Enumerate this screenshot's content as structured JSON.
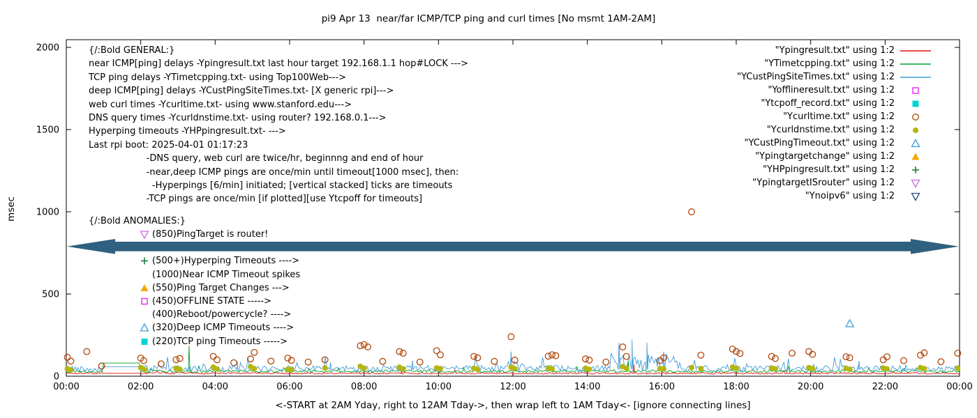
{
  "chart_data": {
    "type": "line+scatter time series (gnuplot style)",
    "title": "pi9 Apr 13  near/far ICMP/TCP ping and curl times [No msmt 1AM-2AM]",
    "xlabel": "<-START at 2AM Yday, right to 12AM Tday->, then wrap left to 1AM Tday<- [ignore connecting lines]",
    "ylabel": "msec",
    "ylim": [
      0,
      2000
    ],
    "y_ticks": [
      0,
      500,
      1000,
      1500,
      2000
    ],
    "x_hours_span": 24,
    "x_ticks": [
      "00:00",
      "02:00",
      "04:00",
      "06:00",
      "08:00",
      "10:00",
      "12:00",
      "14:00",
      "16:00",
      "18:00",
      "20:00",
      "22:00",
      "00:00"
    ],
    "no_measurement_gap_hours": [
      1,
      2
    ],
    "grid": false,
    "legend_position": "top-right",
    "legend": [
      {
        "label": "\"Ypingresult.txt\" using 1:2",
        "marker": "line",
        "color": "#e3120b"
      },
      {
        "label": "\"YTimetcpping.txt\" using 1:2",
        "marker": "line",
        "color": "#00a226"
      },
      {
        "label": "\"YCustPingSiteTimes.txt\" using 1:2",
        "marker": "line",
        "color": "#3f9bd8"
      },
      {
        "label": "\"Yofflineresult.txt\" using 1:2",
        "marker": "square-open",
        "color": "#e619e6"
      },
      {
        "label": "\"Ytcpoff_record.txt\" using 1:2",
        "marker": "square-filled",
        "color": "#00d4d4"
      },
      {
        "label": "\"Ycurltime.txt\" using 1:2",
        "marker": "circle-open",
        "color": "#b0450a"
      },
      {
        "label": "\"Ycurldnstime.txt\" using 1:2",
        "marker": "circle-filled",
        "color": "#b5b50f"
      },
      {
        "label": "\"YCustPingTimeout.txt\" using 1:2",
        "marker": "triangle-open",
        "color": "#3f9bd8"
      },
      {
        "label": "\"Ypingtargetchange\" using 1:2",
        "marker": "triangle-filled",
        "color": "#f2a900"
      },
      {
        "label": "\"YHPpingresult.txt\" using 1:2",
        "marker": "plus",
        "color": "#0e7a30"
      },
      {
        "label": "\"YpingtargetISrouter\" using 1:2",
        "marker": "tri-down-open",
        "color": "#c76ae0"
      },
      {
        "label": "\"Ynoipv6\" using 1:2",
        "marker": "tri-down-open",
        "color": "#1f4e79"
      }
    ],
    "line_series": [
      {
        "name": "Ypingresult.txt",
        "color": "#e3120b",
        "baseline_msec": 16,
        "noise_msec": 5,
        "seed": 7,
        "gap_hold_msec": 18,
        "spikes": [
          [
            9.0,
            55
          ],
          [
            15.25,
            72
          ]
        ]
      },
      {
        "name": "YTimetcpping.txt",
        "color": "#00a226",
        "baseline_msec": 28,
        "noise_msec": 8,
        "seed": 13,
        "gap_hold_msec": 80,
        "spikes": [
          [
            3.3,
            185
          ],
          [
            15.1,
            92
          ]
        ]
      },
      {
        "name": "YCustPingSiteTimes.txt",
        "color": "#3f9bd8",
        "baseline_msec": 40,
        "noise_msec": 20,
        "seed": 42,
        "gap_hold_msec": 58,
        "noisy_regions": [
          {
            "from": 14.6,
            "to": 16.5,
            "extra_msec": 80
          },
          {
            "from": 11.8,
            "to": 12.3,
            "extra_msec": 40
          }
        ],
        "spikes": [
          [
            4.6,
            90
          ],
          [
            7.1,
            85
          ],
          [
            9.3,
            95
          ],
          [
            11.95,
            150
          ],
          [
            14.85,
            205
          ],
          [
            15.2,
            222
          ],
          [
            15.6,
            205
          ],
          [
            16.05,
            150
          ],
          [
            21.3,
            92
          ]
        ]
      }
    ],
    "point_series": [
      {
        "name": "Ycurltime.txt",
        "marker": "circle-open",
        "color": "#b0450a",
        "points": [
          [
            0.03,
            115
          ],
          [
            0.12,
            92
          ],
          [
            0.55,
            150
          ],
          [
            0.95,
            62
          ],
          [
            2.0,
            110
          ],
          [
            2.08,
            95
          ],
          [
            2.55,
            75
          ],
          [
            2.95,
            100
          ],
          [
            3.05,
            108
          ],
          [
            3.95,
            120
          ],
          [
            4.05,
            100
          ],
          [
            4.5,
            82
          ],
          [
            4.95,
            105
          ],
          [
            5.05,
            145
          ],
          [
            5.5,
            92
          ],
          [
            5.95,
            110
          ],
          [
            6.05,
            96
          ],
          [
            6.5,
            86
          ],
          [
            6.95,
            100
          ],
          [
            7.9,
            185
          ],
          [
            8.0,
            192
          ],
          [
            8.1,
            178
          ],
          [
            8.5,
            90
          ],
          [
            8.95,
            150
          ],
          [
            9.05,
            140
          ],
          [
            9.5,
            86
          ],
          [
            9.95,
            155
          ],
          [
            10.05,
            130
          ],
          [
            10.95,
            120
          ],
          [
            11.05,
            112
          ],
          [
            11.5,
            90
          ],
          [
            11.95,
            240
          ],
          [
            12.05,
            98
          ],
          [
            12.95,
            122
          ],
          [
            13.05,
            130
          ],
          [
            13.15,
            125
          ],
          [
            13.95,
            105
          ],
          [
            14.05,
            98
          ],
          [
            14.5,
            86
          ],
          [
            14.95,
            178
          ],
          [
            15.05,
            120
          ],
          [
            15.95,
            95
          ],
          [
            16.05,
            112
          ],
          [
            16.8,
            1000
          ],
          [
            17.05,
            128
          ],
          [
            17.9,
            165
          ],
          [
            18.0,
            150
          ],
          [
            18.1,
            138
          ],
          [
            18.95,
            120
          ],
          [
            19.05,
            108
          ],
          [
            19.5,
            140
          ],
          [
            19.95,
            150
          ],
          [
            20.05,
            133
          ],
          [
            20.95,
            118
          ],
          [
            21.05,
            112
          ],
          [
            21.95,
            100
          ],
          [
            22.05,
            118
          ],
          [
            22.5,
            95
          ],
          [
            22.95,
            128
          ],
          [
            23.05,
            142
          ],
          [
            23.5,
            88
          ],
          [
            23.95,
            140
          ]
        ]
      },
      {
        "name": "Ycurldnstime.txt",
        "marker": "circle-filled",
        "color": "#b5b50f",
        "points": [
          [
            0.03,
            45
          ],
          [
            0.12,
            38
          ],
          [
            2.0,
            52
          ],
          [
            2.1,
            40
          ],
          [
            2.95,
            48
          ],
          [
            3.05,
            42
          ],
          [
            3.95,
            55
          ],
          [
            4.05,
            44
          ],
          [
            4.95,
            58
          ],
          [
            5.05,
            46
          ],
          [
            5.95,
            42
          ],
          [
            6.05,
            40
          ],
          [
            6.95,
            50
          ],
          [
            7.9,
            60
          ],
          [
            8.0,
            48
          ],
          [
            8.95,
            55
          ],
          [
            9.05,
            44
          ],
          [
            9.95,
            50
          ],
          [
            10.05,
            46
          ],
          [
            10.95,
            48
          ],
          [
            11.05,
            42
          ],
          [
            11.95,
            55
          ],
          [
            12.05,
            46
          ],
          [
            12.95,
            50
          ],
          [
            13.05,
            44
          ],
          [
            13.95,
            48
          ],
          [
            14.05,
            42
          ],
          [
            14.95,
            58
          ],
          [
            15.05,
            48
          ],
          [
            15.95,
            46
          ],
          [
            16.05,
            44
          ],
          [
            16.8,
            52
          ],
          [
            17.05,
            46
          ],
          [
            17.9,
            55
          ],
          [
            18.0,
            48
          ],
          [
            18.95,
            50
          ],
          [
            19.05,
            44
          ],
          [
            19.95,
            52
          ],
          [
            20.05,
            46
          ],
          [
            20.95,
            48
          ],
          [
            21.05,
            42
          ],
          [
            21.95,
            50
          ],
          [
            22.05,
            44
          ],
          [
            22.95,
            52
          ],
          [
            23.05,
            46
          ],
          [
            23.95,
            48
          ]
        ]
      },
      {
        "name": "YCustPingTimeout.txt",
        "marker": "triangle-open",
        "color": "#3f9bd8",
        "points": [
          [
            21.05,
            320
          ]
        ]
      },
      {
        "name": "Yofflineresult.txt",
        "marker": "square-open",
        "color": "#e619e6",
        "points": []
      },
      {
        "name": "Ytcpoff_record.txt",
        "marker": "square-filled",
        "color": "#00d4d4",
        "points": []
      },
      {
        "name": "Ypingtargetchange",
        "marker": "triangle-filled",
        "color": "#f2a900",
        "points": []
      },
      {
        "name": "YHPpingresult.txt",
        "marker": "plus",
        "color": "#0e7a30",
        "points": []
      },
      {
        "name": "YpingtargetISrouter",
        "marker": "tri-down-open",
        "color": "#c76ae0",
        "points": []
      },
      {
        "name": "Ynoipv6",
        "marker": "tri-down-open",
        "color": "#1f4e79",
        "points": []
      }
    ],
    "band_annotation": {
      "from_msec": 760,
      "to_msec": 818,
      "color": "#2f607f",
      "shape": "thick double-headed horizontal arrow spanning full plot width"
    }
  },
  "annotations": {
    "general_lines": [
      "{/:Bold GENERAL:}",
      "near ICMP[ping] delays -Ypingresult.txt last hour target 192.168.1.1 hop#LOCK --->",
      "TCP ping delays -YTimetcpping.txt- using Top100Web--->",
      "deep ICMP[ping] delays -YCustPingSiteTimes.txt- [X generic rpi]--->",
      "web curl times -Ycurltime.txt- using www.stanford.edu--->",
      "DNS query times -Ycurldnstime.txt- using router? 192.168.0.1--->",
      "Hyperping timeouts -YHPpingresult.txt- --->",
      "Last rpi boot: 2025-04-01 01:17:23",
      "                    -DNS query, web curl are twice/hr, beginnng and end of hour",
      "                    -near,deep ICMP pings are once/min until timeout[1000 msec], then:",
      "                      -Hyperpings [6/min] initiated; [vertical stacked] ticks are timeouts",
      "                    -TCP pings are once/min [if plotted][use Ytcpoff for timeouts]"
    ],
    "anomalies_header": "{/:Bold ANOMALIES:}",
    "anomaly_lines": [
      {
        "text": "(850)PingTarget is router!",
        "marker": "tri-down-open",
        "color": "#c76ae0"
      },
      {
        "text": "",
        "marker": null,
        "color": null,
        "covered_by_band": true
      },
      {
        "text": "(500+)Hyperping Timeouts ---->",
        "marker": "plus",
        "color": "#0e7a30"
      },
      {
        "text": "(1000)Near ICMP Timeout spikes",
        "marker": null,
        "color": null
      },
      {
        "text": "(550)Ping Target Changes --->",
        "marker": "triangle-filled",
        "color": "#f2a900"
      },
      {
        "text": "(450)OFFLINE STATE ----->",
        "marker": "square-open",
        "color": "#e619e6"
      },
      {
        "text": "(400)Reboot/powercycle? ---->",
        "marker": null,
        "color": null
      },
      {
        "text": "(320)Deep ICMP Timeouts ---->",
        "marker": "triangle-open",
        "color": "#3f9bd8"
      },
      {
        "text": "(220)TCP ping Timeouts ----->",
        "marker": "square-filled",
        "color": "#00d4d4"
      }
    ]
  }
}
